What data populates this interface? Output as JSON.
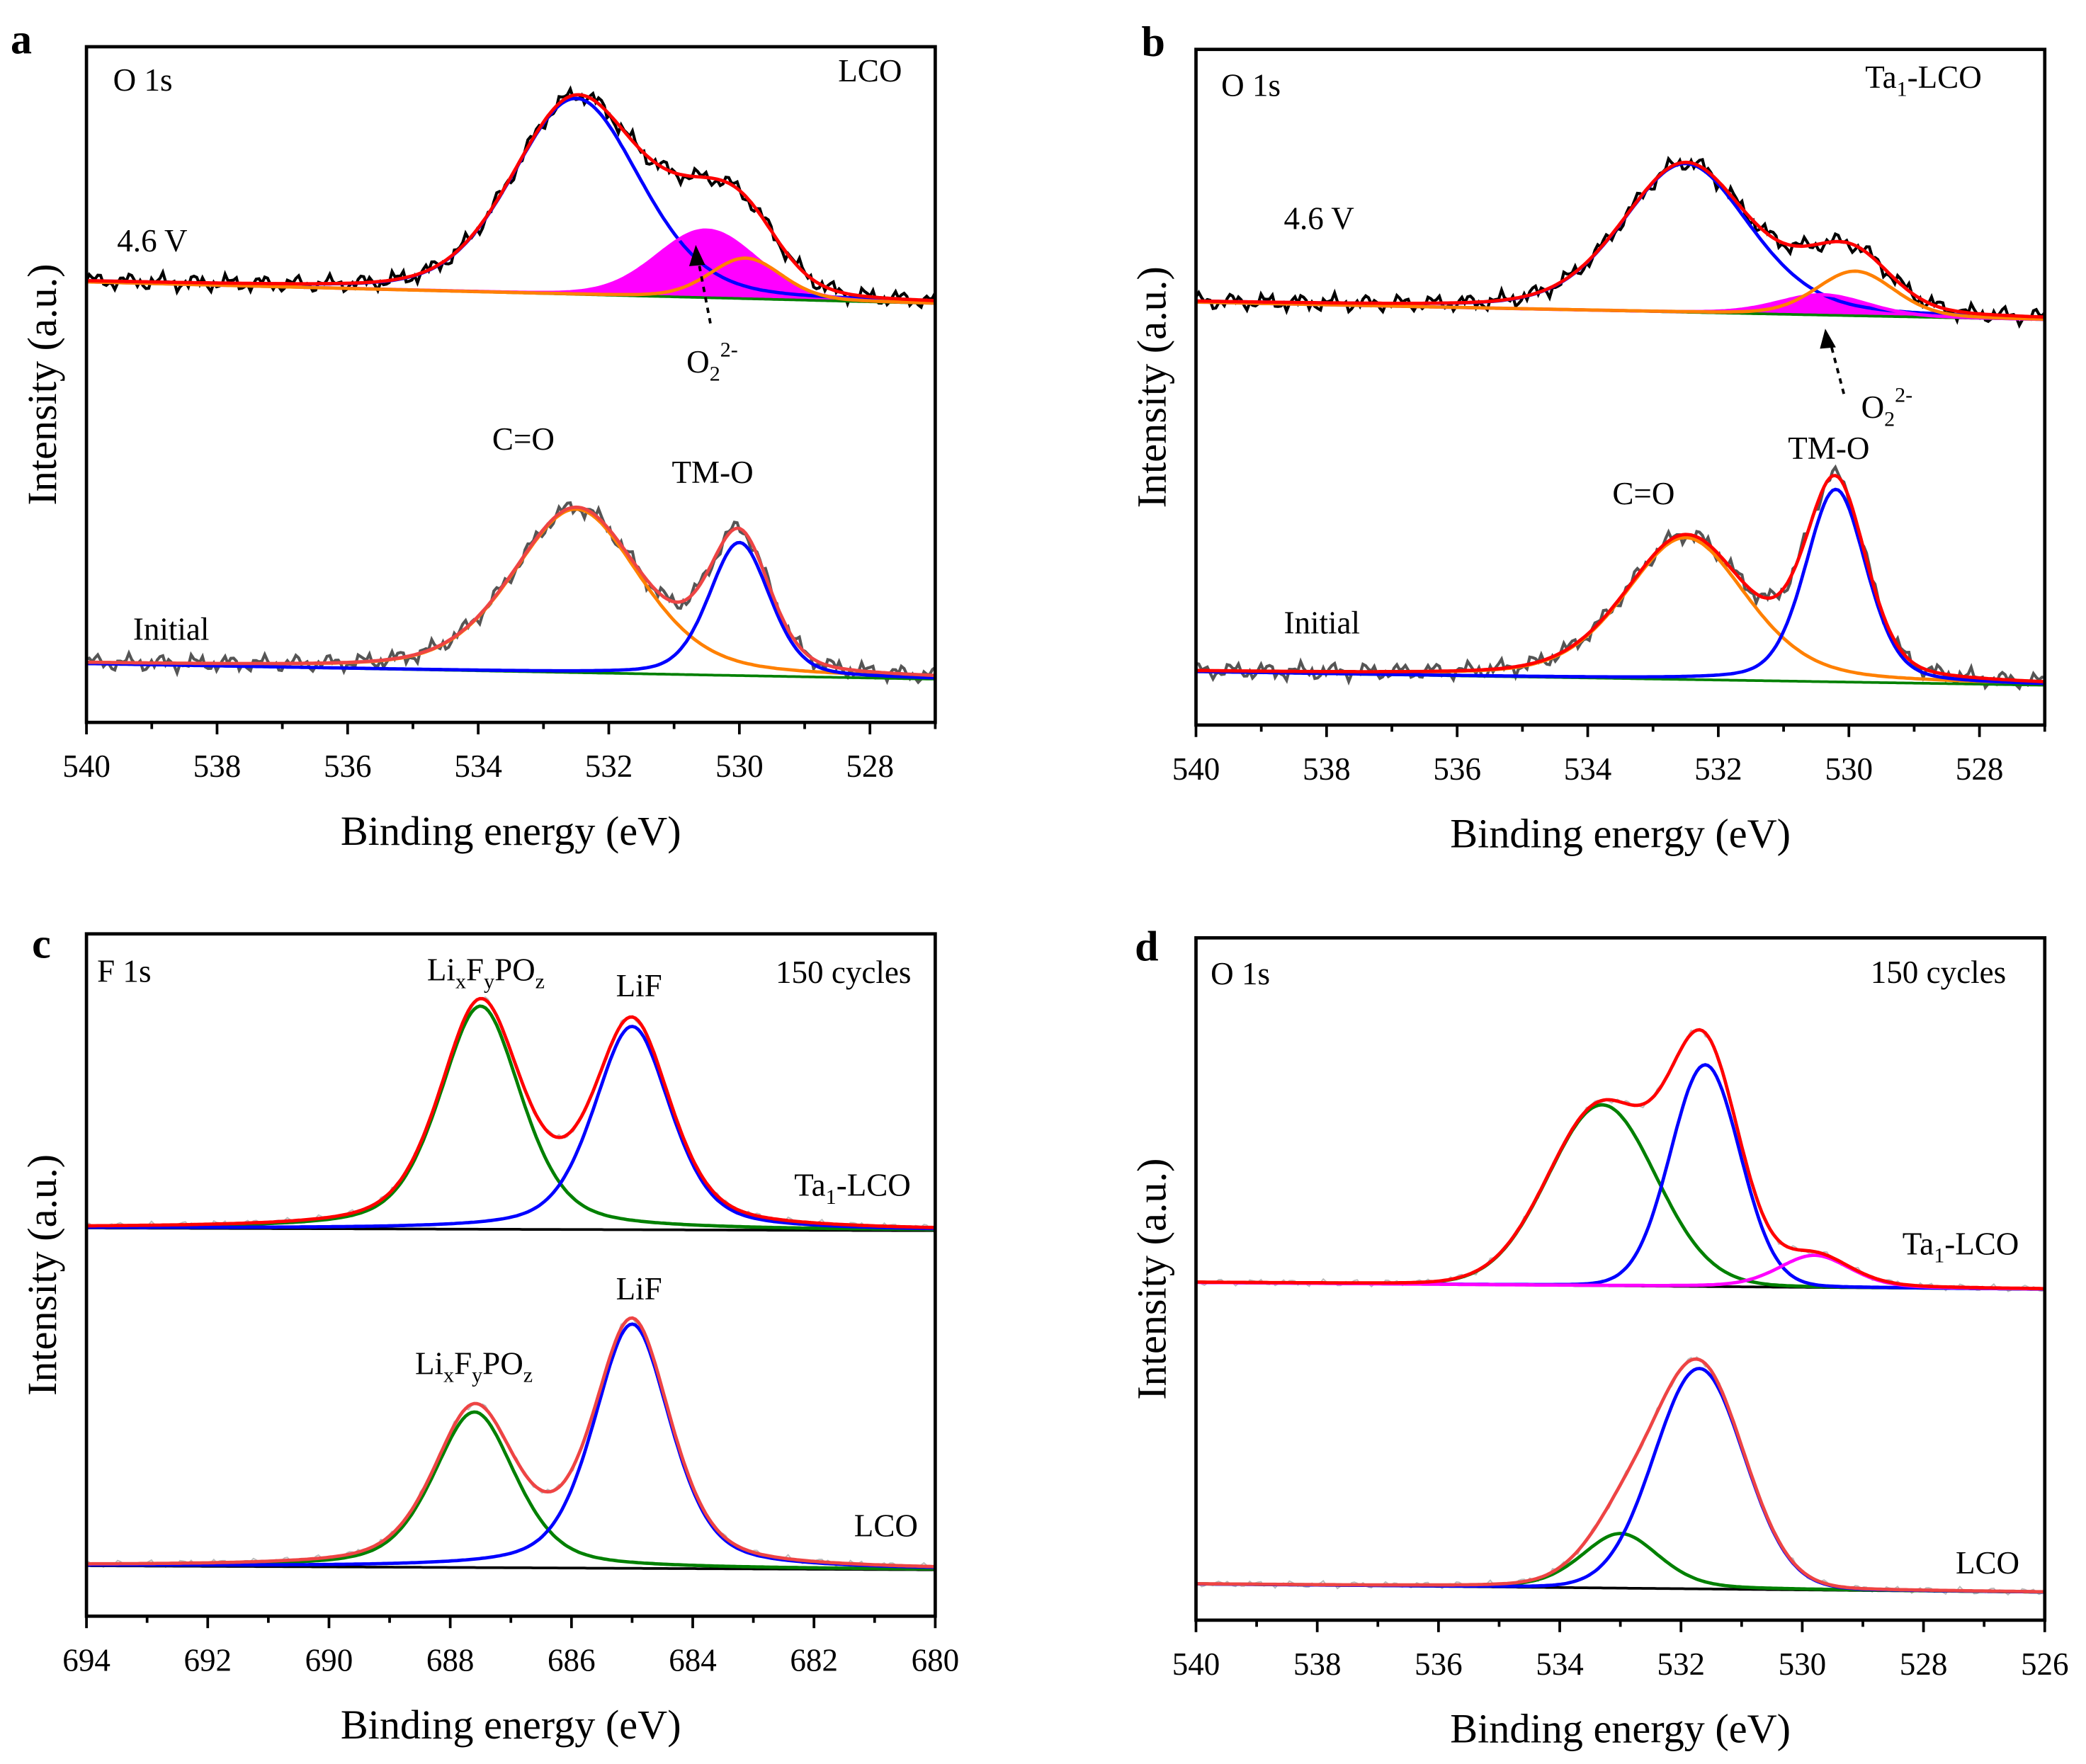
{
  "chart_data": [
    {
      "panel": "a",
      "core": "O 1s",
      "sample": "LCO",
      "type": "line",
      "xlabel": "Binding energy (eV)",
      "ylabel": "Intensity (a.u.)",
      "xlim": [
        540,
        527
      ],
      "ylim": [
        0,
        100
      ],
      "xticks": [
        540,
        538,
        536,
        534,
        532,
        530,
        528
      ],
      "annotations": {
        "upper": "4.6 V",
        "lower": "Initial",
        "peak1": "C=O",
        "peak2": "TM-O",
        "o2_base": "O",
        "o2_sub": "2",
        "o2_sup": "2-"
      },
      "spectra": [
        {
          "baseline": [
            65.2,
            62.0
          ],
          "raw_color": "#000000",
          "sum_color": "#ff0000",
          "peaks": [
            {
              "center": 532.5,
              "height": 29.0,
              "fwhm": 2.3,
              "eta": 0.25,
              "color": "#0000ff"
            },
            {
              "center": 530.5,
              "height": 10.0,
              "fwhm": 1.8,
              "eta": 0.1,
              "color": "#ff00ff",
              "fill": true
            },
            {
              "center": 529.9,
              "height": 6.0,
              "fwhm": 1.3,
              "eta": 0.2,
              "color": "#ff8000"
            }
          ]
        },
        {
          "baseline": [
            8.7,
            6.4
          ],
          "raw_color": "#555555",
          "sum_color": "#ee4444",
          "peaks": [
            {
              "center": 532.5,
              "height": 24.2,
              "fwhm": 2.3,
              "eta": 0.35,
              "color": "#ff8000"
            },
            {
              "center": 530.0,
              "height": 19.7,
              "fwhm": 1.1,
              "eta": 0.3,
              "color": "#0000ff"
            }
          ]
        }
      ]
    },
    {
      "panel": "b",
      "core": "O 1s",
      "sample_base": "Ta",
      "sample_sub": "1",
      "sample_rest": "-LCO",
      "type": "line",
      "xlabel": "Binding energy (eV)",
      "ylabel": "Intensity (a.u.)",
      "xlim": [
        540,
        527
      ],
      "ylim": [
        0,
        100
      ],
      "xticks": [
        540,
        538,
        536,
        534,
        532,
        530,
        528
      ],
      "annotations": {
        "upper": "4.6 V",
        "lower": "Initial",
        "peak1": "C=O",
        "peak2": "TM-O",
        "o2_base": "O",
        "o2_sub": "2",
        "o2_sup": "2-"
      },
      "spectra": [
        {
          "baseline": [
            62.6,
            60.0
          ],
          "raw_color": "#000000",
          "sum_color": "#ff0000",
          "peaks": [
            {
              "center": 532.5,
              "height": 22.0,
              "fwhm": 2.3,
              "eta": 0.3,
              "color": "#0000ff"
            },
            {
              "center": 530.4,
              "height": 3.0,
              "fwhm": 1.6,
              "eta": 0.2,
              "color": "#ff00ff",
              "fill": true
            },
            {
              "center": 529.9,
              "height": 6.6,
              "fwhm": 1.4,
              "eta": 0.2,
              "color": "#ff8000"
            }
          ]
        },
        {
          "baseline": [
            7.9,
            5.9
          ],
          "raw_color": "#555555",
          "sum_color": "#ff0000",
          "peaks": [
            {
              "center": 532.5,
              "height": 21.0,
              "fwhm": 2.2,
              "eta": 0.35,
              "color": "#ff8000"
            },
            {
              "center": 530.2,
              "height": 28.5,
              "fwhm": 1.1,
              "eta": 0.3,
              "color": "#0000ff"
            }
          ]
        }
      ]
    },
    {
      "panel": "c",
      "core": "F 1s",
      "condition": "150 cycles",
      "type": "line",
      "xlabel": "Binding energy (eV)",
      "ylabel": "Intensity (a.u.)",
      "xlim": [
        694,
        680
      ],
      "ylim": [
        0,
        100
      ],
      "xticks": [
        694,
        692,
        690,
        688,
        686,
        684,
        682,
        680
      ],
      "annotations": {
        "upper_sample_base": "Ta",
        "upper_sample_sub": "1",
        "upper_sample_rest": "-LCO",
        "lower_sample": "LCO",
        "lif": "LiF",
        "lixfypoz": [
          {
            "t": "Li",
            "s": ""
          },
          {
            "t": "x",
            "s": "sub"
          },
          {
            "t": "F",
            "s": ""
          },
          {
            "t": "y",
            "s": "sub"
          },
          {
            "t": "PO",
            "s": ""
          },
          {
            "t": "z",
            "s": "sub"
          }
        ]
      },
      "spectra": [
        {
          "baseline": [
            56.9,
            56.5
          ],
          "raw_color": "#bbbbbb",
          "sum_color": "#ff0000",
          "bg_color": "#000000",
          "peaks": [
            {
              "center": 687.5,
              "height": 32.7,
              "fwhm": 1.6,
              "eta": 0.45,
              "color": "#008000"
            },
            {
              "center": 685.0,
              "height": 29.8,
              "fwhm": 1.5,
              "eta": 0.45,
              "color": "#0000ff"
            }
          ]
        },
        {
          "baseline": [
            7.4,
            6.8
          ],
          "raw_color": "#bbbbbb",
          "sum_color": "#ee4444",
          "bg_color": "#000000",
          "peaks": [
            {
              "center": 687.6,
              "height": 22.8,
              "fwhm": 1.6,
              "eta": 0.45,
              "color": "#008000"
            },
            {
              "center": 685.0,
              "height": 35.8,
              "fwhm": 1.5,
              "eta": 0.45,
              "color": "#0000ff"
            }
          ]
        }
      ]
    },
    {
      "panel": "d",
      "core": "O 1s",
      "condition": "150 cycles",
      "type": "line",
      "xlabel": "Binding energy (eV)",
      "ylabel": "Intensity (a.u.)",
      "xlim": [
        540,
        526
      ],
      "ylim": [
        0,
        100
      ],
      "xticks": [
        540,
        538,
        536,
        534,
        532,
        530,
        528,
        526
      ],
      "annotations": {
        "upper_sample_base": "Ta",
        "upper_sample_sub": "1",
        "upper_sample_rest": "-LCO",
        "lower_sample": "LCO"
      },
      "spectra": [
        {
          "baseline": [
            49.5,
            48.5
          ],
          "raw_color": "#bbbbbb",
          "sum_color": "#ff0000",
          "bg_color": "#000000",
          "peaks": [
            {
              "center": 533.3,
              "height": 26.5,
              "fwhm": 2.1,
              "eta": 0.05,
              "color": "#008000"
            },
            {
              "center": 531.6,
              "height": 32.5,
              "fwhm": 1.35,
              "eta": 0.05,
              "color": "#0000ff"
            },
            {
              "center": 529.8,
              "height": 4.7,
              "fwhm": 1.4,
              "eta": 0.3,
              "color": "#ff00ff"
            }
          ]
        },
        {
          "baseline": [
            5.3,
            4.1
          ],
          "raw_color": "#bbbbbb",
          "sum_color": "#ee4444",
          "bg_color": "#000000",
          "peaks": [
            {
              "center": 533.0,
              "height": 8.0,
              "fwhm": 1.5,
              "eta": 0.3,
              "color": "#008000"
            },
            {
              "center": 531.7,
              "height": 32.3,
              "fwhm": 1.75,
              "eta": 0.05,
              "color": "#0000ff"
            }
          ]
        }
      ]
    }
  ]
}
